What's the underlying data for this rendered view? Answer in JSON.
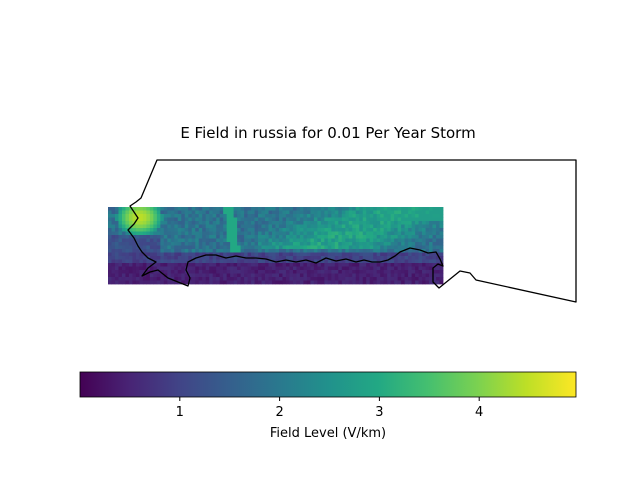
{
  "title": "E Field in russia for 0.01 Per Year Storm",
  "colorbar": {
    "label": "Field Level (V/km)",
    "ticks": [
      "1",
      "2",
      "3",
      "4"
    ],
    "tick_values": [
      1,
      2,
      3,
      4
    ],
    "range": [
      0.0,
      4.97
    ],
    "colormap": "viridis"
  },
  "map": {
    "field_grid": {
      "cols": 96,
      "rows": 22,
      "description_values": "synthesized approximation of the field raster"
    },
    "outline_color": "#000000"
  },
  "chart_data": {
    "type": "heatmap",
    "title": "E Field in russia for 0.01 Per Year Storm",
    "colorbar_label": "Field Level (V/km)",
    "value_range": [
      0.0,
      4.97
    ],
    "colorbar_ticks": [
      1,
      2,
      3,
      4
    ]
  }
}
